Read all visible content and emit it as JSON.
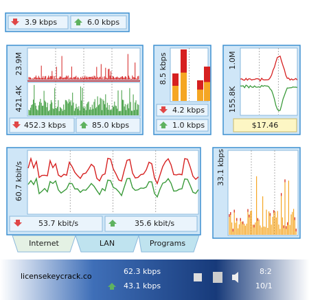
{
  "top": {
    "download": "3.9 kbps",
    "upload": "6.0 kbps"
  },
  "internet_widget": {
    "max_label": "23.9M",
    "min_label": "421.4K",
    "download": "452.3 kbps",
    "upload": "85.0 kbps"
  },
  "bars_widget": {
    "scale_label": "8.5 kbps",
    "download": "4.2 kbps",
    "upload": "1.0 kbps"
  },
  "cost_widget": {
    "max_label": "1.0M",
    "min_label": "155.8K",
    "cost": "$17.46"
  },
  "wide_widget": {
    "scale_label": "60.7 kbit/s",
    "download": "53.7 kbit/s",
    "upload": "35.6 kbit/s",
    "tabs": [
      "Internet",
      "LAN",
      "Programs"
    ]
  },
  "spike_widget": {
    "scale_label": "33.1 kbps"
  },
  "taskbar": {
    "download": "62.3 kbps",
    "upload": "43.1 kbps",
    "time": "8:2",
    "date": "10/1"
  },
  "watermark": "licensekeycrack.co"
}
